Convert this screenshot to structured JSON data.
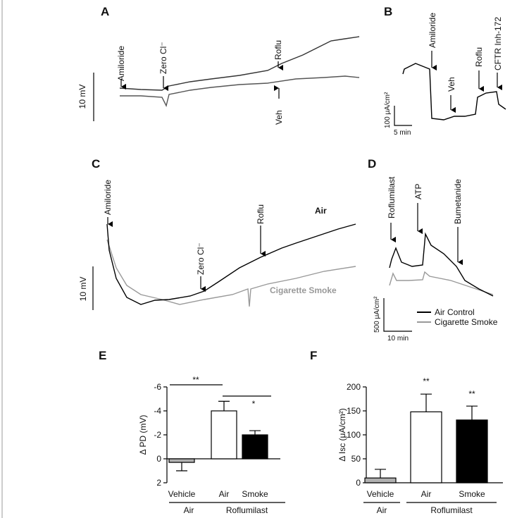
{
  "panels": {
    "A": {
      "label": "A",
      "annotations": [
        "Amiloride",
        "Zero Cl⁻",
        "Roflu",
        "Veh"
      ],
      "scale": "10 mV"
    },
    "B": {
      "label": "B",
      "annotations": [
        "Amiloride",
        "Veh",
        "Roflu",
        "CFTR Inh-172"
      ],
      "scale_y": "100 μA/cm²",
      "scale_x": "5 min"
    },
    "C": {
      "label": "C",
      "annotations": [
        "Amiloride",
        "Zero Cl⁻",
        "Roflu"
      ],
      "trace_labels": [
        "Air",
        "Cigarette Smoke"
      ],
      "scale": "10 mV"
    },
    "D": {
      "label": "D",
      "annotations": [
        "Roflumilast",
        "ATP",
        "Bumetanide"
      ],
      "legend": [
        "Air Control",
        "Cigarette Smoke"
      ],
      "scale_y": "500 μA/cm²",
      "scale_x": "10 min"
    }
  },
  "chart_data": [
    {
      "type": "bar",
      "panel": "E",
      "ylabel": "Δ PD (mV)",
      "categories": [
        "Vehicle",
        "Air",
        "Smoke"
      ],
      "groups": [
        "Air",
        "Roflumilast"
      ],
      "values": [
        0.3,
        -4,
        -2
      ],
      "errors": [
        0.7,
        0.8,
        0.35
      ],
      "colors": [
        "#b0b0b0",
        "#ffffff",
        "#000000"
      ],
      "ylim": [
        2,
        -6
      ],
      "yticks": [
        -6,
        -4,
        -2,
        0,
        2
      ],
      "annotations": [
        "**",
        "*"
      ]
    },
    {
      "type": "bar",
      "panel": "F",
      "ylabel": "Δ Isc (μA/cm²)",
      "categories": [
        "Vehicle",
        "Air",
        "Smoke"
      ],
      "groups": [
        "Air",
        "Roflumilast"
      ],
      "values": [
        10,
        148,
        131
      ],
      "errors": [
        18,
        37,
        29
      ],
      "colors": [
        "#b0b0b0",
        "#ffffff",
        "#000000"
      ],
      "ylim": [
        0,
        200
      ],
      "yticks": [
        0,
        50,
        100,
        150,
        200
      ],
      "annotations": [
        "**",
        "**"
      ]
    }
  ]
}
